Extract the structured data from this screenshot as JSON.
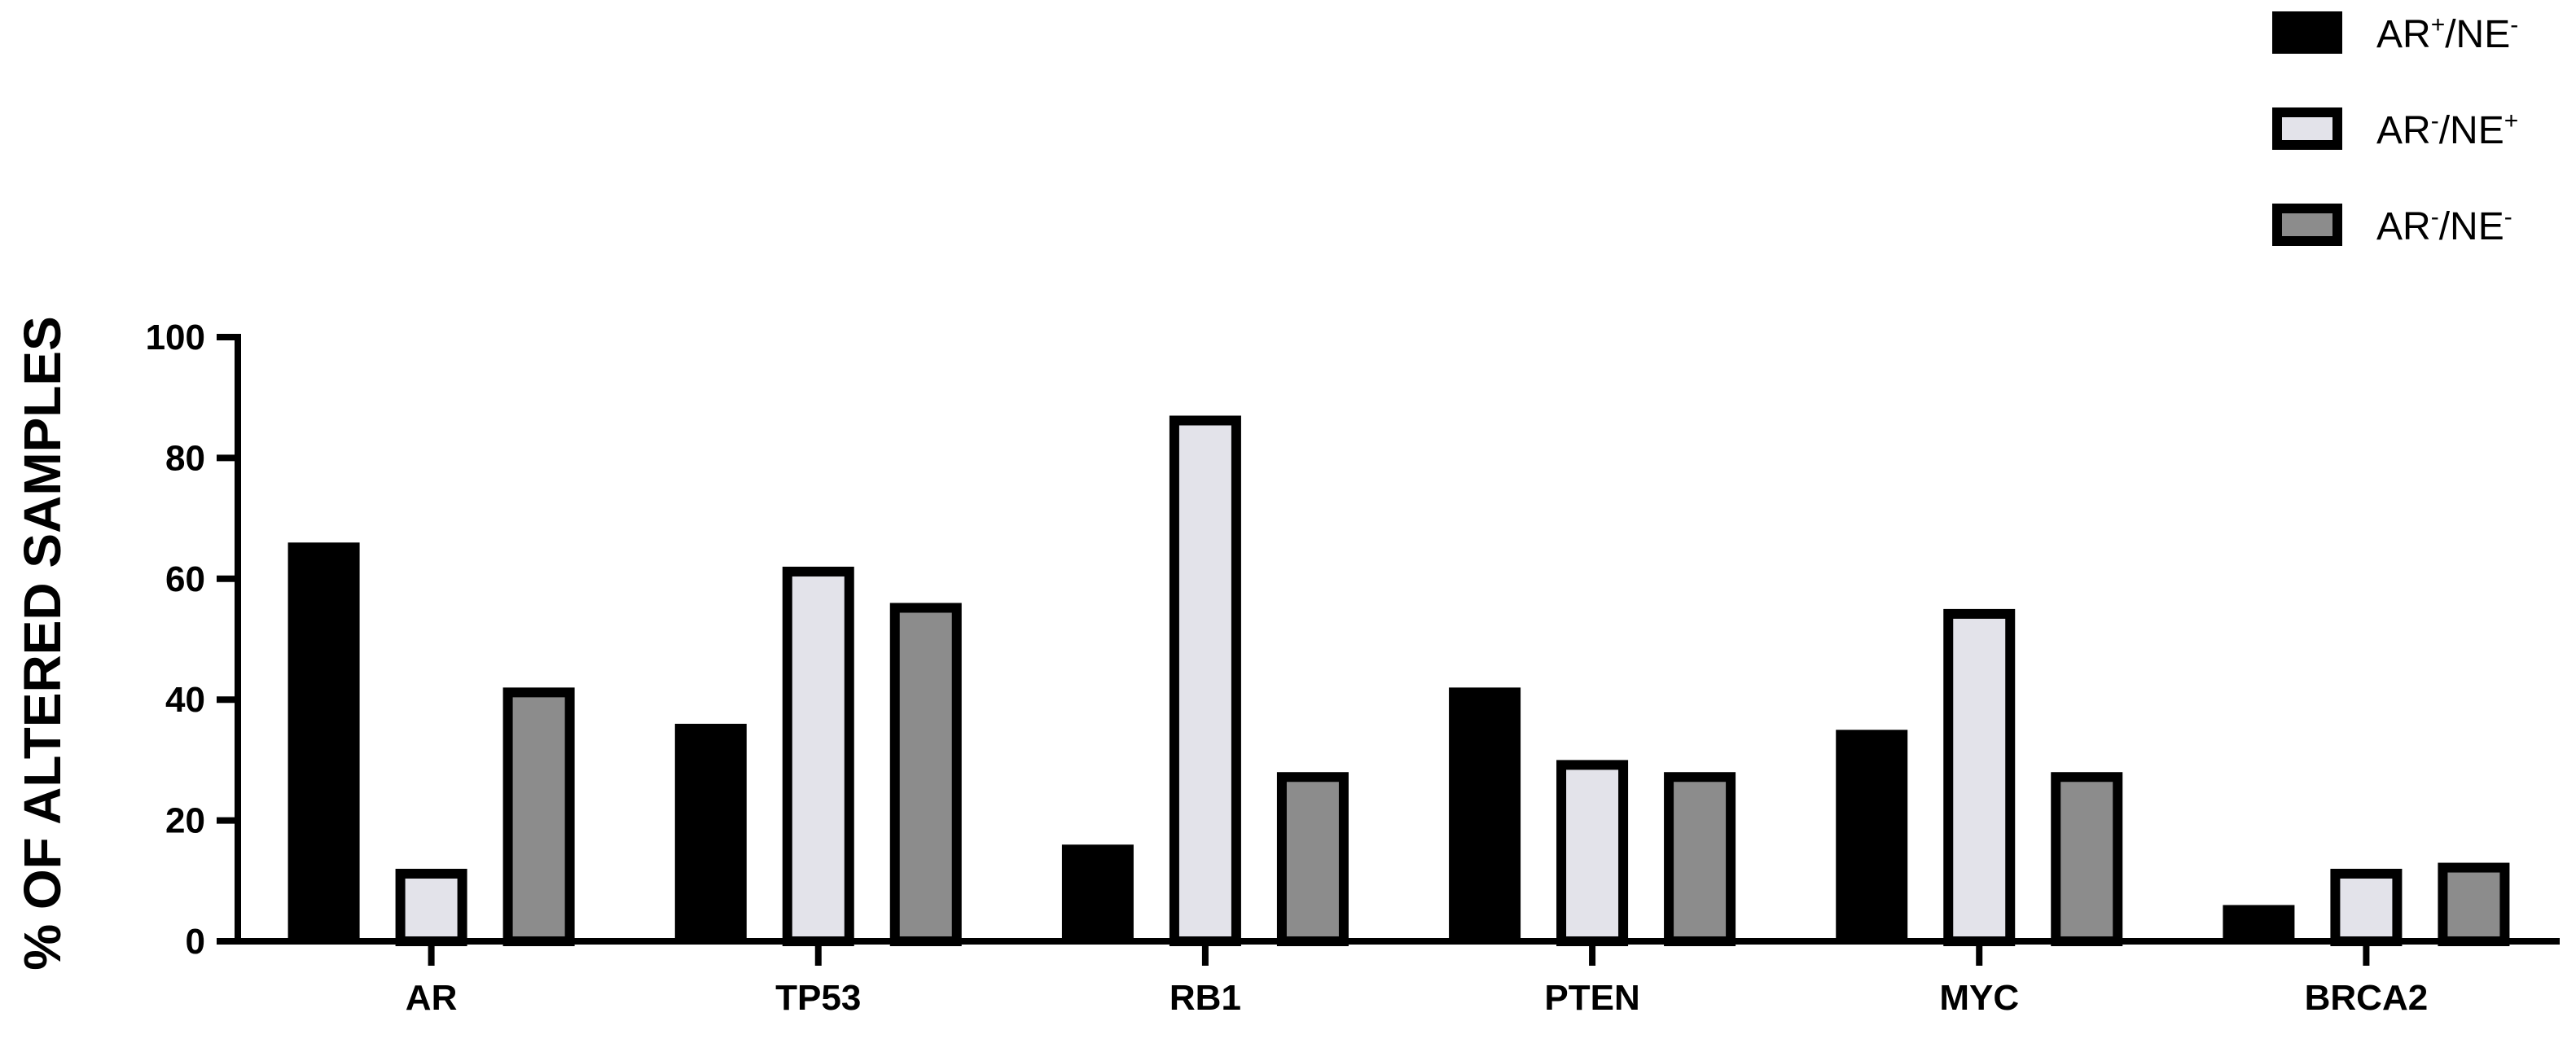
{
  "chart_data": {
    "type": "bar",
    "ylabel": "% OF ALTERED SAMPLES",
    "xlabel": "",
    "ylim": [
      0,
      100
    ],
    "yticks": [
      "0",
      "20",
      "40",
      "60",
      "80",
      "100"
    ],
    "categories": [
      "AR",
      "TP53",
      "RB1",
      "PTEN",
      "MYC",
      "BRCA2"
    ],
    "series": [
      {
        "name": "AR+/NE-",
        "label_base1": "AR",
        "label_sup1": "+",
        "label_base2": "/NE",
        "label_sup2": "-",
        "fill": "#000000",
        "stroke": "#000000",
        "values": [
          66,
          36,
          16,
          42,
          35,
          6
        ]
      },
      {
        "name": "AR-/NE+",
        "label_base1": "AR",
        "label_sup1": "-",
        "label_base2": "/NE",
        "label_sup2": "+",
        "fill": "#e3e3ea",
        "stroke": "#000000",
        "values": [
          12,
          62,
          87,
          30,
          55,
          12
        ]
      },
      {
        "name": "AR-/NE-",
        "label_base1": "AR",
        "label_sup1": "-",
        "label_base2": "/NE",
        "label_sup2": "-",
        "fill": "#8c8c8c",
        "stroke": "#000000",
        "values": [
          42,
          56,
          28,
          28,
          28,
          13
        ]
      }
    ],
    "legend_position": "top-right",
    "grid": false
  }
}
